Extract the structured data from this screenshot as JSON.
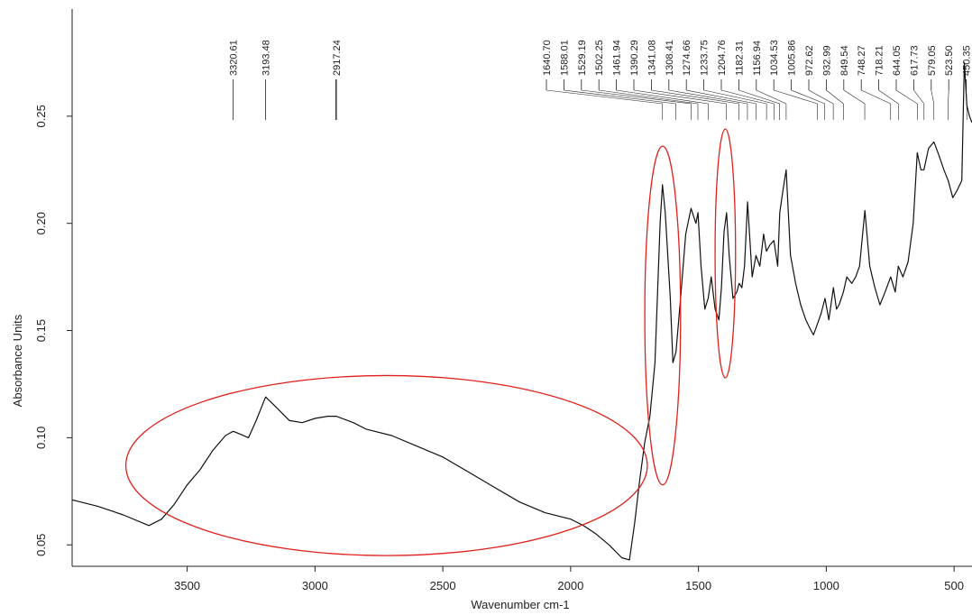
{
  "chart_data": {
    "type": "line",
    "xlabel": "Wavenumber cm-1",
    "ylabel": "Absorbance Units",
    "xlim": [
      3950,
      430
    ],
    "ylim": [
      0.04,
      0.3
    ],
    "x_ticks": [
      3500,
      3000,
      2500,
      2000,
      1500,
      1000,
      500
    ],
    "y_ticks": [
      0.05,
      0.1,
      0.15,
      0.2,
      0.25
    ],
    "y_tick_labels": [
      "0.05",
      "0.10",
      "0.15",
      "0.20",
      "0.25"
    ],
    "grid": false,
    "line_color": "#111111",
    "highlight_color": "#e0201a",
    "series": [
      {
        "x": [
          3950,
          3850,
          3750,
          3650,
          3600,
          3550,
          3500,
          3450,
          3400,
          3350,
          3320,
          3300,
          3260,
          3230,
          3193,
          3150,
          3100,
          3050,
          3000,
          2950,
          2917,
          2850,
          2800,
          2700,
          2600,
          2500,
          2400,
          2300,
          2200,
          2100,
          2000,
          1950,
          1900,
          1850,
          1800,
          1770,
          1750,
          1730,
          1710,
          1690,
          1670,
          1650,
          1641,
          1630,
          1610,
          1600,
          1588,
          1570,
          1550,
          1529,
          1510,
          1502,
          1490,
          1475,
          1462,
          1450,
          1435,
          1420,
          1410,
          1400,
          1390,
          1380,
          1365,
          1350,
          1341,
          1330,
          1320,
          1308,
          1290,
          1275,
          1260,
          1245,
          1234,
          1220,
          1205,
          1190,
          1182,
          1170,
          1157,
          1140,
          1120,
          1100,
          1080,
          1060,
          1050,
          1035,
          1020,
          1005,
          990,
          972,
          960,
          950,
          933,
          920,
          900,
          885,
          870,
          849,
          830,
          810,
          790,
          770,
          748,
          730,
          718,
          700,
          680,
          660,
          644,
          630,
          618,
          600,
          579,
          560,
          540,
          523,
          505,
          490,
          470,
          460,
          450,
          440,
          430
        ],
        "y": [
          0.071,
          0.068,
          0.064,
          0.059,
          0.062,
          0.069,
          0.078,
          0.085,
          0.094,
          0.101,
          0.103,
          0.102,
          0.1,
          0.108,
          0.119,
          0.114,
          0.108,
          0.107,
          0.109,
          0.11,
          0.11,
          0.107,
          0.104,
          0.101,
          0.096,
          0.091,
          0.084,
          0.077,
          0.07,
          0.065,
          0.062,
          0.059,
          0.055,
          0.05,
          0.044,
          0.043,
          0.06,
          0.08,
          0.098,
          0.11,
          0.135,
          0.2,
          0.218,
          0.205,
          0.165,
          0.135,
          0.14,
          0.165,
          0.195,
          0.207,
          0.2,
          0.205,
          0.18,
          0.16,
          0.165,
          0.175,
          0.16,
          0.155,
          0.17,
          0.196,
          0.205,
          0.185,
          0.165,
          0.168,
          0.172,
          0.17,
          0.18,
          0.21,
          0.175,
          0.185,
          0.18,
          0.195,
          0.187,
          0.19,
          0.192,
          0.18,
          0.205,
          0.215,
          0.225,
          0.185,
          0.172,
          0.162,
          0.155,
          0.15,
          0.148,
          0.153,
          0.158,
          0.165,
          0.155,
          0.17,
          0.16,
          0.162,
          0.168,
          0.175,
          0.172,
          0.175,
          0.18,
          0.206,
          0.18,
          0.17,
          0.162,
          0.168,
          0.175,
          0.168,
          0.18,
          0.175,
          0.182,
          0.2,
          0.233,
          0.225,
          0.225,
          0.235,
          0.238,
          0.232,
          0.225,
          0.22,
          0.212,
          0.215,
          0.22,
          0.275,
          0.255,
          0.25,
          0.247
        ]
      }
    ],
    "peak_labels": [
      "3320.61",
      "3193.48",
      "2917.24",
      "1640.70",
      "1588.01",
      "1529.19",
      "1502.25",
      "1461.94",
      "1390.29",
      "1341.08",
      "1308.41",
      "1274.66",
      "1233.75",
      "1204.76",
      "1182.31",
      "1156.94",
      "1034.53",
      "1005.86",
      "972.62",
      "932.99",
      "849.54",
      "748.27",
      "718.21",
      "644.05",
      "617.73",
      "579.05",
      "523.50",
      "450.35"
    ],
    "peak_positions": [
      3320.61,
      3193.48,
      2917.24,
      1640.7,
      1588.01,
      1529.19,
      1502.25,
      1461.94,
      1390.29,
      1341.08,
      1308.41,
      1274.66,
      1233.75,
      1204.76,
      1182.31,
      1156.94,
      1034.53,
      1005.86,
      972.62,
      932.99,
      849.54,
      748.27,
      718.21,
      644.05,
      617.73,
      579.05,
      523.5,
      450.35
    ],
    "highlight_ellipses": [
      {
        "cx": 2720,
        "cy": 0.087,
        "rx": 1020,
        "ry": 0.042
      },
      {
        "cx": 1640,
        "cy": 0.157,
        "rx": 70,
        "ry": 0.079
      },
      {
        "cx": 1395,
        "cy": 0.186,
        "rx": 40,
        "ry": 0.058
      }
    ]
  }
}
